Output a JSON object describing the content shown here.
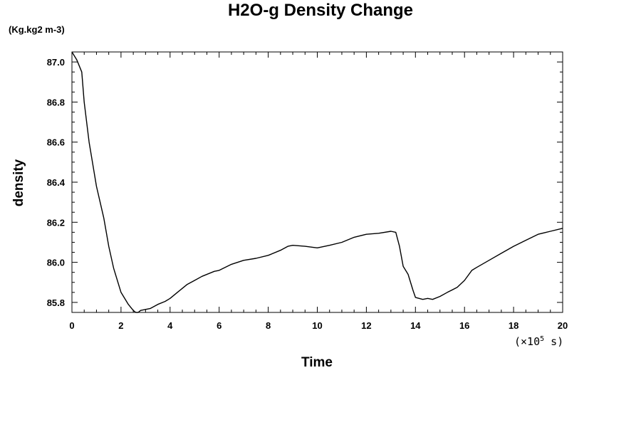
{
  "chart_data": {
    "type": "line",
    "title": "H2O-g Density Change",
    "unit_label": "(Kg.kg2 m-3)",
    "xlabel": "Time",
    "ylabel": "density",
    "x_multiplier": {
      "prefix": "(×10",
      "exponent": "5",
      "suffix": " s)"
    },
    "xlim": [
      0,
      20
    ],
    "ylim": [
      85.75,
      87.05
    ],
    "x_ticks": [
      0,
      2,
      4,
      6,
      8,
      10,
      12,
      14,
      16,
      18,
      20
    ],
    "y_ticks": [
      85.8,
      86.0,
      86.2,
      86.4,
      86.6,
      86.8,
      87.0
    ],
    "x_tick_labels": [
      "0",
      "2",
      "4",
      "6",
      "8",
      "10",
      "12",
      "14",
      "16",
      "18",
      "20"
    ],
    "y_tick_labels": [
      "85.8",
      "86.0",
      "86.2",
      "86.4",
      "86.6",
      "86.8",
      "87.0"
    ],
    "grid": false,
    "series": [
      {
        "color": "#000000",
        "x": [
          0,
          0.2,
          0.4,
          0.5,
          0.7,
          1.0,
          1.3,
          1.5,
          1.7,
          2.0,
          2.3,
          2.5,
          2.6,
          2.7,
          2.8,
          3.0,
          3.2,
          3.5,
          3.8,
          4.0,
          4.3,
          4.7,
          5.0,
          5.3,
          5.8,
          6.0,
          6.5,
          7.0,
          7.5,
          8.0,
          8.5,
          8.8,
          9.0,
          9.5,
          10.0,
          10.5,
          11.0,
          11.5,
          12.0,
          12.5,
          13.0,
          13.2,
          13.35,
          13.5,
          13.7,
          13.9,
          14.0,
          14.3,
          14.5,
          14.7,
          15.0,
          15.3,
          15.7,
          16.0,
          16.3,
          16.5,
          17.0,
          17.5,
          18.0,
          18.5,
          19.0,
          19.5,
          20.0
        ],
        "y": [
          87.05,
          87.01,
          86.95,
          86.8,
          86.6,
          86.38,
          86.22,
          86.08,
          85.97,
          85.85,
          85.79,
          85.76,
          85.75,
          85.75,
          85.76,
          85.765,
          85.77,
          85.79,
          85.805,
          85.82,
          85.85,
          85.89,
          85.91,
          85.93,
          85.955,
          85.96,
          85.99,
          86.01,
          86.02,
          86.035,
          86.06,
          86.08,
          86.085,
          86.08,
          86.072,
          86.085,
          86.1,
          86.125,
          86.14,
          86.145,
          86.155,
          86.15,
          86.08,
          85.98,
          85.94,
          85.86,
          85.825,
          85.815,
          85.82,
          85.815,
          85.83,
          85.85,
          85.875,
          85.91,
          85.96,
          85.975,
          86.01,
          86.045,
          86.08,
          86.11,
          86.14,
          86.155,
          86.17
        ]
      }
    ]
  }
}
